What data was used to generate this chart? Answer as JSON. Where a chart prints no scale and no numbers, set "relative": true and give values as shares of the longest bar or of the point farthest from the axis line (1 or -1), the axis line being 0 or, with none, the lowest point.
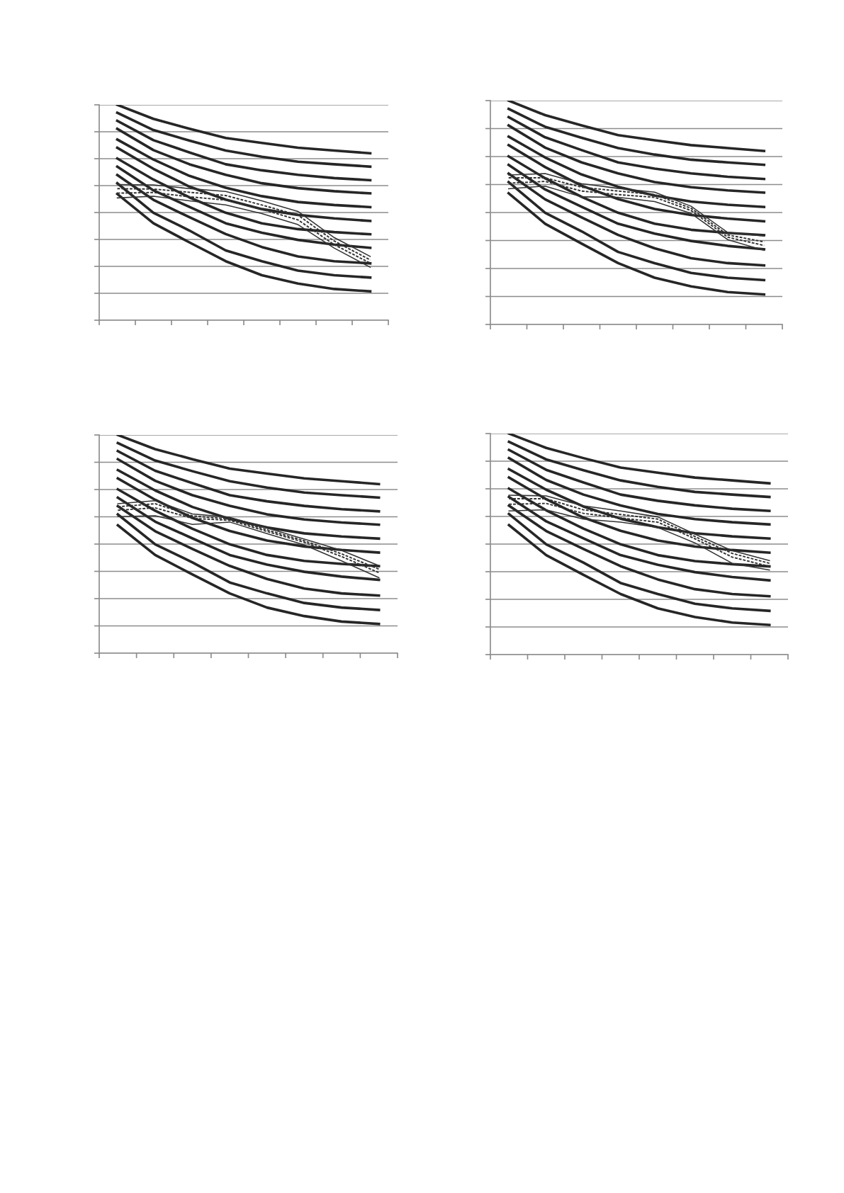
{
  "chart_data": [
    {
      "type": "line",
      "relative": true,
      "categories": [
        null,
        null,
        null,
        null,
        null,
        null,
        null,
        null
      ],
      "grid": "y",
      "series": [
        {
          "color": "#262626",
          "values": [
            1,
            0.935,
            0.889,
            0.846,
            0.823,
            0.801,
            0.788,
            0.775
          ]
        },
        {
          "color": "#262626",
          "values": [
            0.963,
            0.883,
            0.834,
            0.788,
            0.759,
            0.736,
            0.724,
            0.713
          ]
        },
        {
          "color": "#262626",
          "values": [
            0.926,
            0.836,
            0.779,
            0.724,
            0.696,
            0.675,
            0.66,
            0.65
          ]
        },
        {
          "color": "#262626",
          "values": [
            0.889,
            0.79,
            0.724,
            0.675,
            0.636,
            0.613,
            0.599,
            0.589
          ]
        },
        {
          "color": "#262626",
          "values": [
            0.839,
            0.746,
            0.67,
            0.615,
            0.576,
            0.549,
            0.535,
            0.525
          ]
        },
        {
          "color": "#262626",
          "values": [
            0.801,
            0.703,
            0.62,
            0.56,
            0.516,
            0.489,
            0.473,
            0.461
          ]
        },
        {
          "color": "#262626",
          "values": [
            0.751,
            0.653,
            0.57,
            0.499,
            0.45,
            0.423,
            0.409,
            0.399
          ]
        },
        {
          "color": "#262626",
          "values": [
            0.713,
            0.603,
            0.526,
            0.45,
            0.406,
            0.373,
            0.351,
            0.336
          ]
        },
        {
          "color": "#262626",
          "values": [
            0.674,
            0.559,
            0.478,
            0.4,
            0.34,
            0.296,
            0.274,
            0.264
          ]
        },
        {
          "color": "#262626",
          "values": [
            0.636,
            0.499,
            0.416,
            0.324,
            0.274,
            0.23,
            0.209,
            0.198
          ]
        },
        {
          "color": "#262626",
          "values": [
            0.586,
            0.45,
            0.361,
            0.274,
            0.209,
            0.17,
            0.145,
            0.134
          ]
        },
        {
          "color": "#333333",
          "line_style": "solid",
          "values": [
            0.63,
            0.628,
            0.611,
            0.598,
            0.554,
            0.505,
            0.384,
            0.296
          ]
        },
        {
          "color": "#333333",
          "line_style": "dashed",
          "values": [
            0.611,
            0.609,
            0.594,
            0.579,
            0.535,
            0.488,
            0.368,
            0.28
          ]
        },
        {
          "color": "#333333",
          "line_style": "dashed",
          "values": [
            0.59,
            0.593,
            0.573,
            0.558,
            0.515,
            0.466,
            0.351,
            0.265
          ]
        },
        {
          "color": "#333333",
          "line_style": "solid",
          "values": [
            0.568,
            0.576,
            0.554,
            0.535,
            0.495,
            0.444,
            0.335,
            0.246
          ]
        }
      ]
    },
    {
      "type": "line",
      "relative": true,
      "categories": [
        null,
        null,
        null,
        null,
        null,
        null,
        null,
        null
      ],
      "grid": "y",
      "series": [
        {
          "color": "#262626",
          "values": [
            1,
            0.935,
            0.889,
            0.846,
            0.823,
            0.801,
            0.788,
            0.775
          ]
        },
        {
          "color": "#262626",
          "values": [
            0.963,
            0.883,
            0.834,
            0.788,
            0.759,
            0.736,
            0.724,
            0.713
          ]
        },
        {
          "color": "#262626",
          "values": [
            0.926,
            0.836,
            0.779,
            0.724,
            0.696,
            0.675,
            0.66,
            0.65
          ]
        },
        {
          "color": "#262626",
          "values": [
            0.889,
            0.79,
            0.724,
            0.675,
            0.636,
            0.613,
            0.599,
            0.589
          ]
        },
        {
          "color": "#262626",
          "values": [
            0.839,
            0.746,
            0.67,
            0.615,
            0.576,
            0.549,
            0.535,
            0.525
          ]
        },
        {
          "color": "#262626",
          "values": [
            0.801,
            0.703,
            0.62,
            0.56,
            0.516,
            0.489,
            0.473,
            0.461
          ]
        },
        {
          "color": "#262626",
          "values": [
            0.751,
            0.653,
            0.57,
            0.499,
            0.45,
            0.423,
            0.409,
            0.399
          ]
        },
        {
          "color": "#262626",
          "values": [
            0.713,
            0.603,
            0.526,
            0.45,
            0.406,
            0.373,
            0.351,
            0.336
          ]
        },
        {
          "color": "#262626",
          "values": [
            0.674,
            0.559,
            0.478,
            0.4,
            0.34,
            0.296,
            0.274,
            0.264
          ]
        },
        {
          "color": "#262626",
          "values": [
            0.636,
            0.499,
            0.416,
            0.324,
            0.274,
            0.23,
            0.209,
            0.198
          ]
        },
        {
          "color": "#262626",
          "values": [
            0.586,
            0.45,
            0.361,
            0.274,
            0.209,
            0.17,
            0.145,
            0.134
          ]
        },
        {
          "color": "#333333",
          "line_style": "solid",
          "values": [
            0.668,
            0.674,
            0.629,
            0.608,
            0.591,
            0.528,
            0.411,
            0.395
          ]
        },
        {
          "color": "#333333",
          "line_style": "dashed",
          "values": [
            0.655,
            0.655,
            0.613,
            0.596,
            0.58,
            0.519,
            0.4,
            0.369
          ]
        },
        {
          "color": "#333333",
          "line_style": "dashed",
          "values": [
            0.631,
            0.639,
            0.596,
            0.58,
            0.568,
            0.509,
            0.39,
            0.353
          ]
        },
        {
          "color": "#333333",
          "line_style": "solid",
          "values": [
            0.606,
            0.618,
            0.57,
            0.568,
            0.549,
            0.496,
            0.379,
            0.331
          ]
        }
      ]
    },
    {
      "type": "line",
      "relative": true,
      "categories": [
        null,
        null,
        null,
        null,
        null,
        null,
        null,
        null
      ],
      "grid": "y",
      "series": [
        {
          "color": "#262626",
          "values": [
            1,
            0.935,
            0.889,
            0.846,
            0.823,
            0.801,
            0.788,
            0.775
          ]
        },
        {
          "color": "#262626",
          "values": [
            0.963,
            0.883,
            0.834,
            0.788,
            0.759,
            0.736,
            0.724,
            0.713
          ]
        },
        {
          "color": "#262626",
          "values": [
            0.926,
            0.836,
            0.779,
            0.724,
            0.696,
            0.675,
            0.66,
            0.65
          ]
        },
        {
          "color": "#262626",
          "values": [
            0.889,
            0.79,
            0.724,
            0.675,
            0.636,
            0.613,
            0.599,
            0.589
          ]
        },
        {
          "color": "#262626",
          "values": [
            0.839,
            0.746,
            0.67,
            0.615,
            0.576,
            0.549,
            0.535,
            0.525
          ]
        },
        {
          "color": "#262626",
          "values": [
            0.801,
            0.703,
            0.62,
            0.56,
            0.516,
            0.489,
            0.473,
            0.461
          ]
        },
        {
          "color": "#262626",
          "values": [
            0.751,
            0.653,
            0.57,
            0.499,
            0.45,
            0.423,
            0.409,
            0.399
          ]
        },
        {
          "color": "#262626",
          "values": [
            0.713,
            0.603,
            0.526,
            0.45,
            0.406,
            0.373,
            0.351,
            0.336
          ]
        },
        {
          "color": "#262626",
          "values": [
            0.674,
            0.559,
            0.478,
            0.4,
            0.34,
            0.296,
            0.274,
            0.264
          ]
        },
        {
          "color": "#262626",
          "values": [
            0.636,
            0.499,
            0.416,
            0.324,
            0.274,
            0.23,
            0.209,
            0.198
          ]
        },
        {
          "color": "#262626",
          "values": [
            0.586,
            0.45,
            0.361,
            0.274,
            0.209,
            0.17,
            0.145,
            0.134
          ]
        },
        {
          "color": "#333333",
          "line_style": "solid",
          "values": [
            0.685,
            0.699,
            0.638,
            0.623,
            0.574,
            0.523,
            0.471,
            0.401
          ]
        },
        {
          "color": "#333333",
          "line_style": "dashed",
          "values": [
            0.671,
            0.685,
            0.629,
            0.615,
            0.565,
            0.515,
            0.455,
            0.385
          ]
        },
        {
          "color": "#333333",
          "line_style": "dashed",
          "values": [
            0.655,
            0.666,
            0.618,
            0.609,
            0.558,
            0.508,
            0.443,
            0.369
          ]
        },
        {
          "color": "#333333",
          "line_style": "solid",
          "values": [
            0.626,
            0.63,
            0.59,
            0.601,
            0.548,
            0.496,
            0.423,
            0.346
          ]
        }
      ]
    },
    {
      "type": "line",
      "relative": true,
      "categories": [
        null,
        null,
        null,
        null,
        null,
        null,
        null,
        null
      ],
      "grid": "y",
      "series": [
        {
          "color": "#262626",
          "values": [
            1,
            0.935,
            0.889,
            0.846,
            0.823,
            0.801,
            0.788,
            0.775
          ]
        },
        {
          "color": "#262626",
          "values": [
            0.963,
            0.883,
            0.834,
            0.788,
            0.759,
            0.736,
            0.724,
            0.713
          ]
        },
        {
          "color": "#262626",
          "values": [
            0.926,
            0.836,
            0.779,
            0.724,
            0.696,
            0.675,
            0.66,
            0.65
          ]
        },
        {
          "color": "#262626",
          "values": [
            0.889,
            0.79,
            0.724,
            0.675,
            0.636,
            0.613,
            0.599,
            0.589
          ]
        },
        {
          "color": "#262626",
          "values": [
            0.839,
            0.746,
            0.67,
            0.615,
            0.576,
            0.549,
            0.535,
            0.525
          ]
        },
        {
          "color": "#262626",
          "values": [
            0.801,
            0.703,
            0.62,
            0.56,
            0.516,
            0.489,
            0.473,
            0.461
          ]
        },
        {
          "color": "#262626",
          "values": [
            0.751,
            0.653,
            0.57,
            0.499,
            0.45,
            0.423,
            0.409,
            0.399
          ]
        },
        {
          "color": "#262626",
          "values": [
            0.713,
            0.603,
            0.526,
            0.45,
            0.406,
            0.373,
            0.351,
            0.336
          ]
        },
        {
          "color": "#262626",
          "values": [
            0.674,
            0.559,
            0.478,
            0.4,
            0.34,
            0.296,
            0.274,
            0.264
          ]
        },
        {
          "color": "#262626",
          "values": [
            0.636,
            0.499,
            0.416,
            0.324,
            0.274,
            0.23,
            0.209,
            0.198
          ]
        },
        {
          "color": "#262626",
          "values": [
            0.586,
            0.45,
            0.361,
            0.274,
            0.209,
            0.17,
            0.145,
            0.134
          ]
        },
        {
          "color": "#333333",
          "line_style": "solid",
          "values": [
            0.721,
            0.718,
            0.673,
            0.65,
            0.623,
            0.545,
            0.47,
            0.425
          ]
        },
        {
          "color": "#333333",
          "line_style": "dashed",
          "values": [
            0.705,
            0.705,
            0.655,
            0.634,
            0.613,
            0.534,
            0.458,
            0.413
          ]
        },
        {
          "color": "#333333",
          "line_style": "dashed",
          "values": [
            0.68,
            0.684,
            0.639,
            0.618,
            0.599,
            0.524,
            0.441,
            0.399
          ]
        },
        {
          "color": "#333333",
          "line_style": "solid",
          "values": [
            0.65,
            0.655,
            0.613,
            0.599,
            0.575,
            0.505,
            0.413,
            0.383
          ]
        }
      ]
    }
  ]
}
